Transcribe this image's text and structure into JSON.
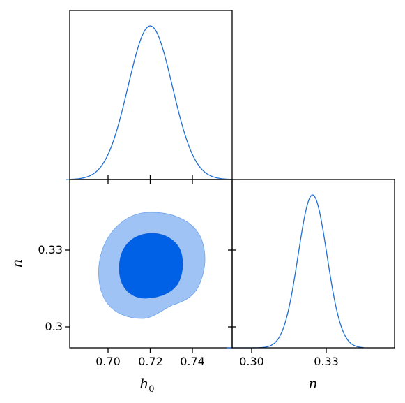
{
  "chart_data": [
    {
      "panel": "h0-marginal",
      "type": "line",
      "curve": "gaussian",
      "mean": 0.72,
      "sigma": 0.0105,
      "xlim": [
        0.68,
        0.76
      ],
      "xticks": [
        0.7,
        0.72,
        0.74
      ],
      "ytick_labels": false
    },
    {
      "panel": "h0-n-joint",
      "type": "contour",
      "levels": [
        "68%",
        "95%"
      ],
      "colors": {
        "inner": "#0060e6",
        "outer": "#9fc3f5"
      },
      "center": {
        "h0": 0.7185,
        "n": 0.3245
      },
      "xlim": [
        0.68,
        0.76
      ],
      "ylim": [
        0.29,
        0.345
      ],
      "xticks": [
        0.7,
        0.72,
        0.74
      ],
      "xtick_labels": [
        "0.70",
        "0.72",
        "0.74"
      ],
      "yticks": [
        0.3,
        0.33
      ],
      "ytick_labels": [
        "0.3",
        "0.33"
      ],
      "xlabel": "h",
      "xlabel_sub": "0",
      "ylabel": "n"
    },
    {
      "panel": "n-marginal",
      "type": "line",
      "curve": "gaussian",
      "mean": 0.3245,
      "sigma": 0.0058,
      "xlim": [
        0.29,
        0.345
      ],
      "xticks": [
        0.3,
        0.33
      ],
      "xtick_labels": [
        "0.30",
        "0.33"
      ],
      "xlabel": "n"
    }
  ],
  "colors": {
    "line": "#1f6fd6"
  }
}
